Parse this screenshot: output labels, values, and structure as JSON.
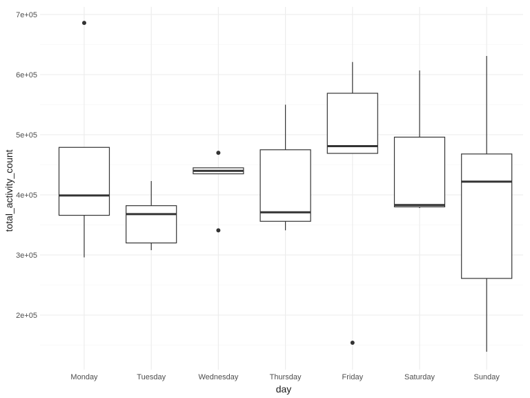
{
  "chart_data": {
    "type": "box",
    "xlabel": "day",
    "ylabel": "total_activity_count",
    "ylim": [
      130000,
      710000
    ],
    "yticks": [
      200000,
      300000,
      400000,
      500000,
      600000,
      700000
    ],
    "ytick_labels": [
      "2e+05",
      "3e+05",
      "4e+05",
      "5e+05",
      "6e+05",
      "7e+05"
    ],
    "grid": true,
    "categories": [
      "Monday",
      "Tuesday",
      "Wednesday",
      "Thursday",
      "Friday",
      "Saturday",
      "Sunday"
    ],
    "boxes": [
      {
        "min": 296000,
        "q1": 366000,
        "median": 399000,
        "q3": 479000,
        "max": 479000,
        "outliers": [
          686000
        ]
      },
      {
        "min": 308000,
        "q1": 320000,
        "median": 368000,
        "q3": 382000,
        "max": 423000,
        "outliers": []
      },
      {
        "min": 435000,
        "q1": 435000,
        "median": 440000,
        "q3": 445000,
        "max": 445000,
        "outliers": [
          470000,
          341000
        ]
      },
      {
        "min": 341000,
        "q1": 356000,
        "median": 371000,
        "q3": 475000,
        "max": 550000,
        "outliers": []
      },
      {
        "min": 469000,
        "q1": 469000,
        "median": 481000,
        "q3": 569000,
        "max": 621000,
        "outliers": [
          154000
        ]
      },
      {
        "min": 378000,
        "q1": 380000,
        "median": 383000,
        "q3": 496000,
        "max": 607000,
        "outliers": []
      },
      {
        "min": 139000,
        "q1": 261000,
        "median": 422000,
        "q3": 468000,
        "max": 631000,
        "outliers": []
      }
    ]
  }
}
